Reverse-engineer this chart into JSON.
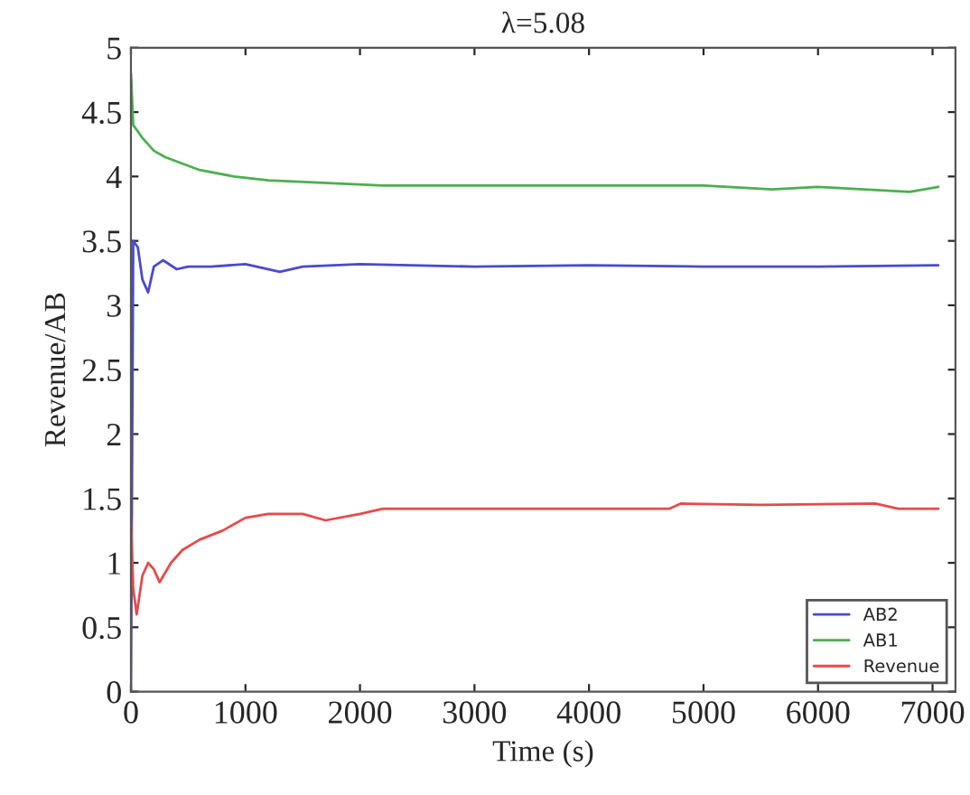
{
  "chart_data": {
    "type": "line",
    "title": "λ=5.08",
    "xlabel": "Time (s)",
    "ylabel": "Revenue/AB",
    "xlim": [
      0,
      7200
    ],
    "xticks": [
      0,
      1000,
      2000,
      3000,
      4000,
      5000,
      6000,
      7000
    ],
    "ylim": [
      0,
      5
    ],
    "yticks": [
      0,
      0.5,
      1,
      1.5,
      2,
      2.5,
      3,
      3.5,
      4,
      4.5,
      5
    ],
    "legend": "bottom right",
    "grid": false,
    "marker": "none",
    "line_style": "solid",
    "series": [
      {
        "name": "AB2",
        "color": "#4a4ad0",
        "x": [
          0,
          20,
          60,
          100,
          150,
          200,
          280,
          400,
          500,
          700,
          1000,
          1300,
          1500,
          2000,
          3000,
          4000,
          5000,
          6000,
          7050
        ],
        "values": [
          0,
          3.5,
          3.45,
          3.2,
          3.1,
          3.3,
          3.35,
          3.28,
          3.3,
          3.3,
          3.32,
          3.26,
          3.3,
          3.32,
          3.3,
          3.31,
          3.3,
          3.3,
          3.31
        ]
      },
      {
        "name": "AB1",
        "color": "#4caf50",
        "x": [
          0,
          20,
          60,
          100,
          200,
          300,
          600,
          900,
          1200,
          2200,
          3000,
          5000,
          5600,
          6000,
          6800,
          7050
        ],
        "values": [
          4.8,
          4.4,
          4.35,
          4.3,
          4.2,
          4.15,
          4.05,
          4.0,
          3.97,
          3.93,
          3.93,
          3.93,
          3.9,
          3.92,
          3.88,
          3.92
        ]
      },
      {
        "name": "Revenue",
        "color": "#e84a4a",
        "x": [
          0,
          20,
          50,
          100,
          150,
          200,
          250,
          350,
          450,
          600,
          800,
          1000,
          1200,
          1500,
          1700,
          2000,
          2200,
          3000,
          4000,
          4700,
          4800,
          5500,
          6500,
          6700,
          7050
        ],
        "values": [
          1.35,
          0.8,
          0.6,
          0.9,
          1.0,
          0.95,
          0.85,
          1.0,
          1.1,
          1.18,
          1.25,
          1.35,
          1.38,
          1.38,
          1.33,
          1.38,
          1.42,
          1.42,
          1.42,
          1.42,
          1.46,
          1.45,
          1.46,
          1.42,
          1.42
        ]
      }
    ]
  }
}
